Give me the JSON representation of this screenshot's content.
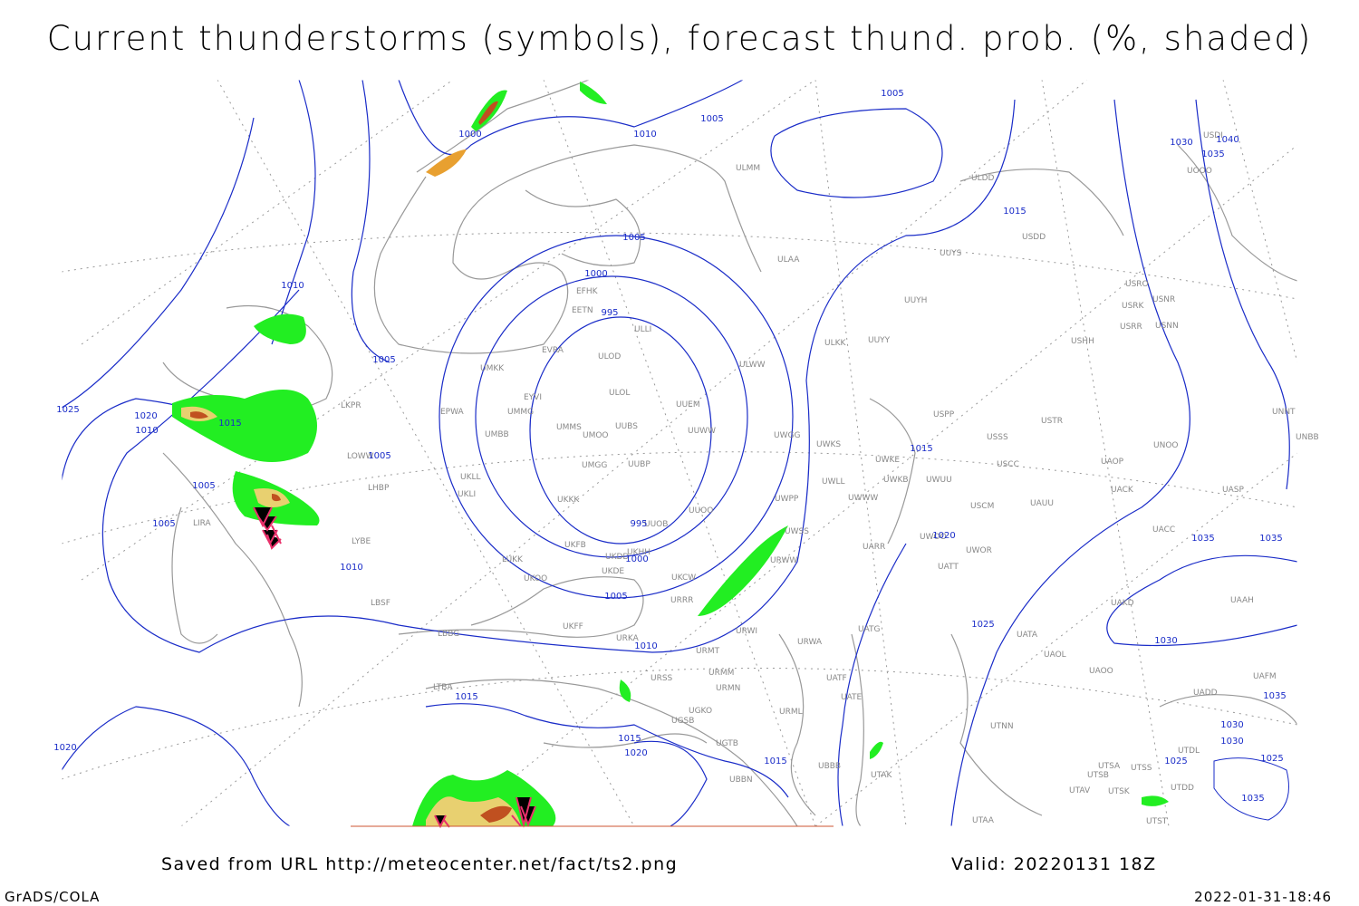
{
  "title": "Current thunderstorms (symbols), forecast thund. prob. (%, shaded)",
  "footer": {
    "source": "Saved from URL http://meteocenter.net/fact/ts2.png",
    "valid": "Valid: 20220131 18Z",
    "software": "GrADS/COLA",
    "timestamp": "2022-01-31-18:46"
  },
  "stations": [
    "ULMM",
    "ULDD",
    "USDD",
    "ULAA",
    "UUYS",
    "USRO",
    "USRK",
    "USNR",
    "USRR",
    "USNN",
    "UUYH",
    "EFHK",
    "EETN",
    "ULLI",
    "EVRA",
    "ULOD",
    "UUYY",
    "ULKK",
    "USHH",
    "UMKK",
    "ULWW",
    "UMMG",
    "EYVI",
    "ULOL",
    "UUEM",
    "EPWA",
    "LKPR",
    "UMMS",
    "UUBS",
    "UUWW",
    "UMBB",
    "UMOO",
    "UWGG",
    "UWKS",
    "USSS",
    "USTR",
    "USPP",
    "UNNT",
    "UNBB",
    "UNOO",
    "UWKE",
    "UMGG",
    "UUBP",
    "UWKB",
    "UWUU",
    "USCC",
    "UAOP",
    "UWLL",
    "LOWW",
    "UKLL",
    "UKLI",
    "LHBP",
    "UWWW",
    "UACK",
    "UASP",
    "UKKK",
    "UWPP",
    "USCM",
    "UAUU",
    "UUOO",
    "UUOB",
    "LIRA",
    "LYBE",
    "UWOO",
    "UWOR",
    "UACC",
    "UATT",
    "UARR",
    "UKFB",
    "UKDD",
    "UKHH",
    "LUKK",
    "UKOO",
    "UKDE",
    "UWSS",
    "URWW",
    "UKCW",
    "URRR",
    "LBSF",
    "UAKD",
    "UAAH",
    "UKFF",
    "LBBG",
    "URKA",
    "URMT",
    "UATG",
    "URWI",
    "UATA",
    "UAOL",
    "UAOO",
    "URWA",
    "URSS",
    "URMM",
    "UATF",
    "UATE",
    "URMN",
    "LTBA",
    "UADD",
    "UAFM",
    "UTNN",
    "UGSB",
    "UGKO",
    "URML",
    "UBBB",
    "UTAK",
    "UTSA",
    "UTSS",
    "UTSB",
    "UTAV",
    "UTSK",
    "UTDL",
    "UTDD",
    "UTST",
    "UTAA",
    "UGTB",
    "UBBN",
    "USDI",
    "UOOO"
  ],
  "isobar_labels": [
    1005,
    1005,
    1010,
    1000,
    1030,
    1040,
    1035,
    1015,
    1005,
    1000,
    995,
    1010,
    1005,
    1025,
    1020,
    1015,
    1010,
    1005,
    1015,
    1005,
    1005,
    995,
    1000,
    1010,
    1020,
    1035,
    1035,
    1005,
    1025,
    1030,
    1010,
    1015,
    1035,
    1030,
    1030,
    1015,
    1020,
    1015,
    1025,
    1025,
    1035,
    1020
  ]
}
